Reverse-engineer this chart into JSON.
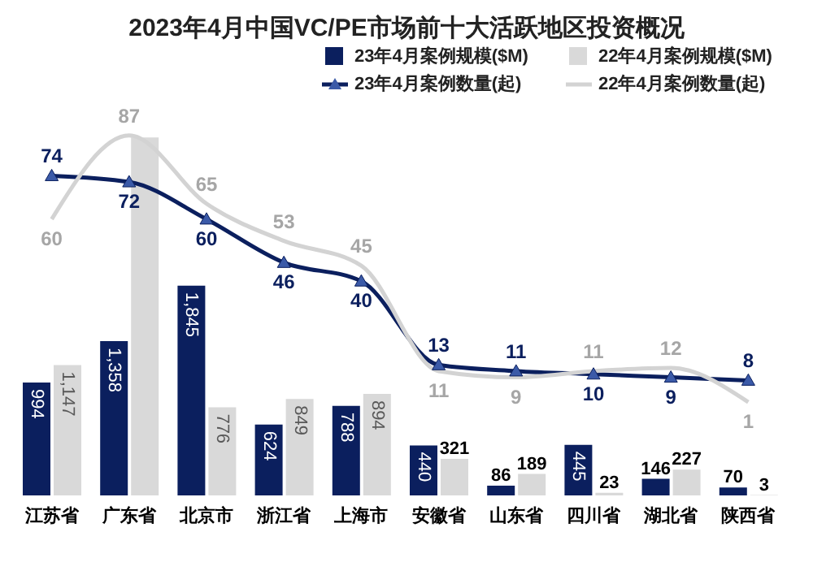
{
  "chart_data": {
    "type": "bar",
    "title": "2023年4月中国VC/PE市场前十大活跃地区投资概况",
    "categories": [
      "江苏省",
      "广东省",
      "北京市",
      "浙江省",
      "上海市",
      "安徽省",
      "山东省",
      "四川省",
      "湖北省",
      "陕西省"
    ],
    "series": [
      {
        "name": "23年4月案例规模($M)",
        "color": "#0b1f5e",
        "values": [
          994,
          1358,
          1845,
          624,
          788,
          440,
          86,
          445,
          146,
          70
        ],
        "value_labels": [
          "994",
          "1,358",
          "1,845",
          "624",
          "788",
          "440",
          "86",
          "445",
          "146",
          "70"
        ]
      },
      {
        "name": "22年4月案例规模($M)",
        "color": "#d9d9d9",
        "values": [
          1147,
          3150,
          776,
          849,
          894,
          321,
          189,
          23,
          227,
          3
        ],
        "value_labels": [
          "1,147",
          null,
          "776",
          "849",
          "894",
          "321",
          "189",
          "23",
          "227",
          "3"
        ]
      },
      {
        "name": "23年4月案例数量(起)",
        "type": "line",
        "axis": "y2",
        "marker": "triangle",
        "color": "#0b1f5e",
        "values": [
          74,
          72,
          60,
          46,
          40,
          13,
          11,
          10,
          9,
          8
        ],
        "value_labels": [
          "74",
          "72",
          "60",
          "46",
          "40",
          "13",
          "11",
          "10",
          "9",
          "8"
        ]
      },
      {
        "name": "22年4月案例数量(起)",
        "type": "line",
        "axis": "y2",
        "marker": "none",
        "color": "#d3d3d3",
        "values": [
          60,
          87,
          65,
          53,
          45,
          11,
          9,
          11,
          12,
          1
        ],
        "value_labels": [
          "60",
          "87",
          "65",
          "53",
          "45",
          "11",
          "9",
          "11",
          "12",
          "1"
        ]
      }
    ],
    "tick_labels": "x",
    "grid": false,
    "legend": "top right"
  }
}
